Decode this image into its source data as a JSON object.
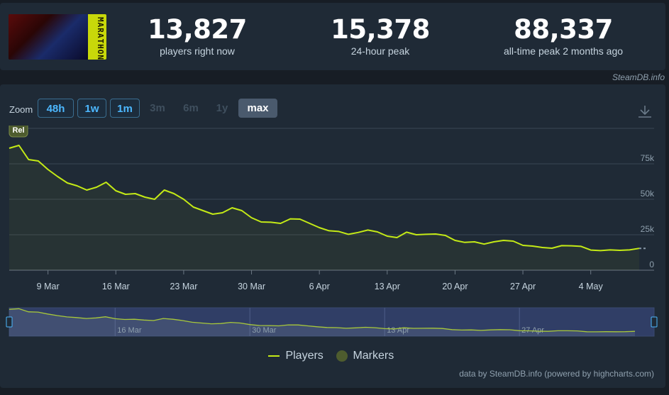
{
  "stats": {
    "now_value": "13,827",
    "now_label": "players right now",
    "peak24_value": "15,378",
    "peak24_label": "24-hour peak",
    "alltime_value": "88,337",
    "alltime_label": "all-time peak 2 months ago"
  },
  "logo_text": "MARATHON",
  "credit_top": "SteamDB.info",
  "zoom": {
    "label": "Zoom",
    "buttons": [
      {
        "label": "48h",
        "state": "active"
      },
      {
        "label": "1w",
        "state": "active"
      },
      {
        "label": "1m",
        "state": "active"
      },
      {
        "label": "3m",
        "state": "disabled"
      },
      {
        "label": "6m",
        "state": "disabled"
      },
      {
        "label": "1y",
        "state": "disabled"
      },
      {
        "label": "max",
        "state": "selected"
      }
    ]
  },
  "marker_label": "Rel",
  "legend": {
    "players": "Players",
    "markers": "Markers"
  },
  "credit_bottom": "data by SteamDB.info (powered by highcharts.com)",
  "colors": {
    "line": "#c4ea16",
    "marker": "#4e5c2e",
    "navigator_bg": "#303e66"
  },
  "chart_data": {
    "type": "line",
    "series": [
      {
        "name": "Players",
        "x": [
          "2026-03-05",
          "2026-03-06",
          "2026-03-07",
          "2026-03-08",
          "2026-03-09",
          "2026-03-10",
          "2026-03-11",
          "2026-03-12",
          "2026-03-13",
          "2026-03-14",
          "2026-03-15",
          "2026-03-16",
          "2026-03-17",
          "2026-03-18",
          "2026-03-19",
          "2026-03-20",
          "2026-03-21",
          "2026-03-22",
          "2026-03-23",
          "2026-03-24",
          "2026-03-25",
          "2026-03-26",
          "2026-03-27",
          "2026-03-28",
          "2026-03-29",
          "2026-03-30",
          "2026-03-31",
          "2026-04-01",
          "2026-04-02",
          "2026-04-03",
          "2026-04-04",
          "2026-04-05",
          "2026-04-06",
          "2026-04-07",
          "2026-04-08",
          "2026-04-09",
          "2026-04-10",
          "2026-04-11",
          "2026-04-12",
          "2026-04-13",
          "2026-04-14",
          "2026-04-15",
          "2026-04-16",
          "2026-04-17",
          "2026-04-18",
          "2026-04-19",
          "2026-04-20",
          "2026-04-21",
          "2026-04-22",
          "2026-04-23",
          "2026-04-24",
          "2026-04-25",
          "2026-04-26",
          "2026-04-27",
          "2026-04-28",
          "2026-04-29",
          "2026-04-30",
          "2026-05-01",
          "2026-05-02",
          "2026-05-03",
          "2026-05-04",
          "2026-05-05",
          "2026-05-06",
          "2026-05-07",
          "2026-05-08",
          "2026-05-09"
        ],
        "values": [
          86000,
          88000,
          78000,
          77000,
          71000,
          66000,
          61500,
          59500,
          56500,
          58500,
          62000,
          56000,
          53500,
          54000,
          51500,
          50000,
          56500,
          54000,
          50000,
          44500,
          42000,
          39500,
          40500,
          44000,
          42000,
          37000,
          34000,
          33800,
          33000,
          36200,
          36000,
          33000,
          30000,
          27800,
          27300,
          25300,
          26600,
          28300,
          27000,
          24000,
          23000,
          26800,
          25000,
          25300,
          25500,
          24500,
          21000,
          19600,
          20000,
          18400,
          20000,
          21000,
          20500,
          17500,
          17000,
          16000,
          15500,
          17300,
          17200,
          16800,
          14200,
          13800,
          14300,
          14000,
          14300,
          15378
        ]
      }
    ],
    "x_ticks": [
      "9 Mar",
      "16 Mar",
      "23 Mar",
      "30 Mar",
      "6 Apr",
      "13 Apr",
      "20 Apr",
      "27 Apr",
      "4 May"
    ],
    "y_ticks": [
      "0",
      "25k",
      "50k",
      "75k"
    ],
    "ylim": [
      0,
      100000
    ],
    "navigator_ticks": [
      "16 Mar",
      "30 Mar",
      "13 Apr",
      "27 Apr"
    ],
    "markers": [
      {
        "x": "2026-03-05",
        "label": "Rel"
      }
    ],
    "grid": true,
    "legend_position": "bottom-center"
  }
}
